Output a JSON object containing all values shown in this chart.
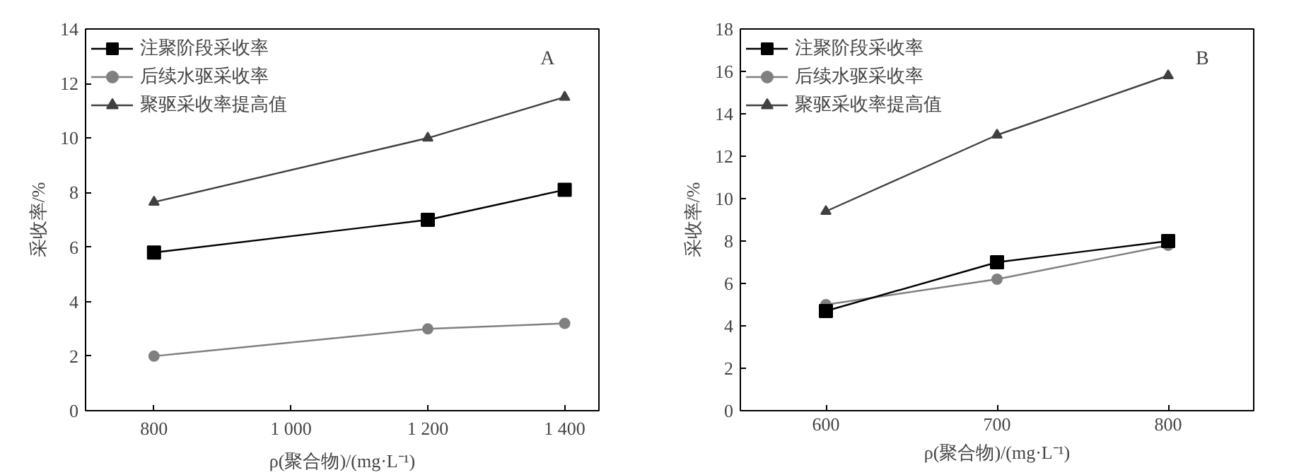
{
  "chart_data": [
    {
      "type": "line",
      "x": [
        800,
        1200,
        1400
      ],
      "xlabel": "ρ(聚合物)/(mg·L⁻¹)",
      "ylabel": "采收率/%",
      "annotations": [
        "A"
      ],
      "xlim": [
        700,
        1450
      ],
      "xticks": [
        800,
        {
          "value": 1000,
          "label": "1 000"
        },
        {
          "value": 1200,
          "label": "1 200"
        },
        {
          "value": 1400,
          "label": "1 400"
        }
      ],
      "ylim": [
        0,
        14
      ],
      "yticks": [
        0,
        2,
        4,
        6,
        8,
        10,
        12,
        14
      ],
      "grid": false,
      "legend": "top left",
      "series": [
        {
          "name": "注聚阶段采收率",
          "color": "#000000",
          "marker": "square",
          "values": [
            5.8,
            7.0,
            8.1
          ]
        },
        {
          "name": "后续水驱采收率",
          "color": "#808080",
          "marker": "circle",
          "values": [
            2.0,
            3.0,
            3.2
          ]
        },
        {
          "name": "聚驱采收率提高值",
          "color": "#404040",
          "marker": "triangle",
          "values": [
            7.65,
            10.0,
            11.5
          ]
        }
      ]
    },
    {
      "type": "line",
      "x": [
        600,
        700,
        800
      ],
      "xlabel": "ρ(聚合物)/(mg·L⁻¹)",
      "ylabel": "采收率/%",
      "annotations": [
        "B"
      ],
      "xlim": [
        550,
        850
      ],
      "xticks": [
        600,
        700,
        800
      ],
      "ylim": [
        0,
        18
      ],
      "yticks": [
        0,
        2,
        4,
        6,
        8,
        10,
        12,
        14,
        16,
        18
      ],
      "grid": false,
      "legend": "top left",
      "series": [
        {
          "name": "注聚阶段采收率",
          "color": "#000000",
          "marker": "square",
          "values": [
            4.7,
            7.0,
            8.0
          ]
        },
        {
          "name": "后续水驱采收率",
          "color": "#808080",
          "marker": "circle",
          "values": [
            5.0,
            6.2,
            7.8
          ]
        },
        {
          "name": "聚驱采收率提高值",
          "color": "#404040",
          "marker": "triangle",
          "values": [
            9.4,
            13.0,
            15.8
          ]
        }
      ]
    }
  ]
}
